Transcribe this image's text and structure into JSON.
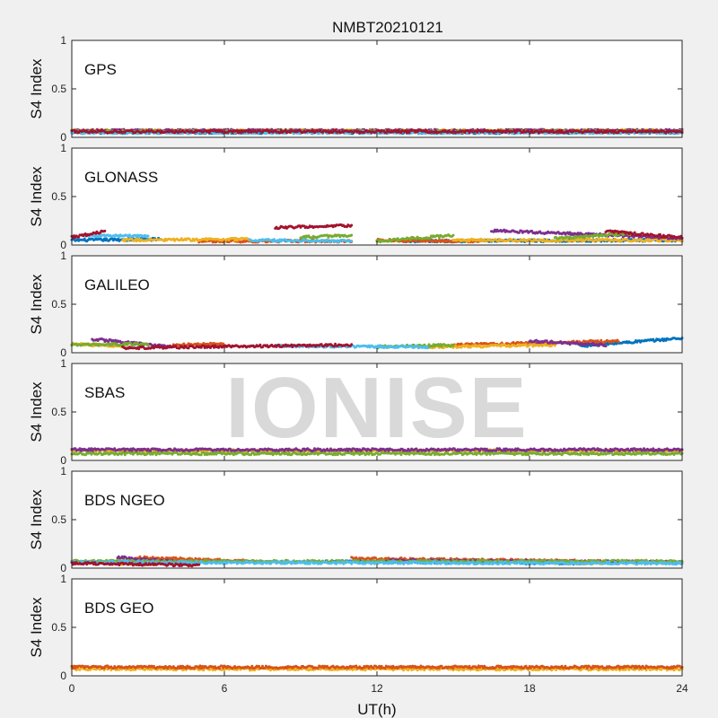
{
  "title": "NMBT20210121",
  "watermark": "IONISE",
  "colors": [
    "#0072BD",
    "#D95319",
    "#EDB120",
    "#7E2F8E",
    "#77AC30",
    "#4DBEEE",
    "#A2142F"
  ],
  "chart_data": [
    {
      "type": "scatter",
      "label": "GPS",
      "ylabel": "S4 Index",
      "xlim": [
        0,
        24
      ],
      "ylim": [
        0,
        1
      ],
      "yticks": [
        "0",
        "0.5",
        "1"
      ],
      "series": [
        {
          "color": "#0072BD",
          "segments": [
            {
              "x": [
                0,
                24
              ],
              "y": [
                0.05,
                0.05
              ]
            }
          ]
        },
        {
          "color": "#D95319",
          "segments": [
            {
              "x": [
                0,
                24
              ],
              "y": [
                0.06,
                0.06
              ]
            }
          ]
        },
        {
          "color": "#EDB120",
          "segments": [
            {
              "x": [
                0,
                24
              ],
              "y": [
                0.07,
                0.07
              ]
            }
          ]
        },
        {
          "color": "#7E2F8E",
          "segments": [
            {
              "x": [
                0,
                24
              ],
              "y": [
                0.07,
                0.07
              ]
            }
          ]
        },
        {
          "color": "#77AC30",
          "segments": [
            {
              "x": [
                0,
                24
              ],
              "y": [
                0.06,
                0.06
              ]
            }
          ]
        },
        {
          "color": "#4DBEEE",
          "segments": [
            {
              "x": [
                0,
                24
              ],
              "y": [
                0.05,
                0.05
              ]
            }
          ]
        },
        {
          "color": "#A2142F",
          "segments": [
            {
              "x": [
                0,
                24
              ],
              "y": [
                0.06,
                0.06
              ]
            }
          ]
        }
      ]
    },
    {
      "type": "scatter",
      "label": "GLONASS",
      "ylabel": "S4 Index",
      "xlim": [
        0,
        24
      ],
      "ylim": [
        0,
        1
      ],
      "yticks": [
        "0",
        "0.5",
        "1"
      ],
      "series": [
        {
          "color": "#0072BD",
          "segments": [
            {
              "x": [
                0,
                3.5
              ],
              "y": [
                0.05,
                0.06
              ]
            },
            {
              "x": [
                13,
                24
              ],
              "y": [
                0.04,
                0.05
              ]
            }
          ]
        },
        {
          "color": "#D95319",
          "segments": [
            {
              "x": [
                5,
                11
              ],
              "y": [
                0.04,
                0.04
              ]
            },
            {
              "x": [
                12,
                16
              ],
              "y": [
                0.05,
                0.04
              ]
            }
          ]
        },
        {
          "color": "#EDB120",
          "segments": [
            {
              "x": [
                2,
                7
              ],
              "y": [
                0.05,
                0.06
              ]
            },
            {
              "x": [
                15,
                24
              ],
              "y": [
                0.05,
                0.05
              ]
            }
          ]
        },
        {
          "color": "#7E2F8E",
          "segments": [
            {
              "x": [
                16.5,
                24
              ],
              "y": [
                0.15,
                0.07
              ]
            }
          ]
        },
        {
          "color": "#77AC30",
          "segments": [
            {
              "x": [
                9,
                11
              ],
              "y": [
                0.08,
                0.1
              ]
            },
            {
              "x": [
                12,
                15
              ],
              "y": [
                0.04,
                0.1
              ]
            },
            {
              "x": [
                19,
                22
              ],
              "y": [
                0.07,
                0.12
              ]
            }
          ]
        },
        {
          "color": "#4DBEEE",
          "segments": [
            {
              "x": [
                0.5,
                3
              ],
              "y": [
                0.1,
                0.09
              ]
            },
            {
              "x": [
                7,
                11
              ],
              "y": [
                0.05,
                0.04
              ]
            }
          ]
        },
        {
          "color": "#A2142F",
          "segments": [
            {
              "x": [
                0,
                1.3
              ],
              "y": [
                0.08,
                0.14
              ]
            },
            {
              "x": [
                8,
                11
              ],
              "y": [
                0.18,
                0.2
              ]
            },
            {
              "x": [
                21,
                24
              ],
              "y": [
                0.14,
                0.08
              ]
            }
          ]
        }
      ]
    },
    {
      "type": "scatter",
      "label": "GALILEO",
      "ylabel": "S4 Index",
      "xlim": [
        0,
        24
      ],
      "ylim": [
        0,
        1
      ],
      "yticks": [
        "0",
        "0.5",
        "1"
      ],
      "series": [
        {
          "color": "#0072BD",
          "segments": [
            {
              "x": [
                20,
                24
              ],
              "y": [
                0.07,
                0.15
              ]
            }
          ]
        },
        {
          "color": "#D95319",
          "segments": [
            {
              "x": [
                4,
                6
              ],
              "y": [
                0.08,
                0.09
              ]
            },
            {
              "x": [
                15,
                21.5
              ],
              "y": [
                0.08,
                0.12
              ]
            }
          ]
        },
        {
          "color": "#EDB120",
          "segments": [
            {
              "x": [
                0,
                2
              ],
              "y": [
                0.09,
                0.07
              ]
            },
            {
              "x": [
                14,
                19
              ],
              "y": [
                0.06,
                0.08
              ]
            }
          ]
        },
        {
          "color": "#7E2F8E",
          "segments": [
            {
              "x": [
                0.8,
                4
              ],
              "y": [
                0.14,
                0.06
              ]
            },
            {
              "x": [
                18,
                21
              ],
              "y": [
                0.12,
                0.08
              ]
            }
          ]
        },
        {
          "color": "#77AC30",
          "segments": [
            {
              "x": [
                0,
                3
              ],
              "y": [
                0.08,
                0.09
              ]
            },
            {
              "x": [
                12,
                15
              ],
              "y": [
                0.06,
                0.08
              ]
            }
          ]
        },
        {
          "color": "#4DBEEE",
          "segments": [
            {
              "x": [
                8,
                14
              ],
              "y": [
                0.07,
                0.06
              ]
            }
          ]
        },
        {
          "color": "#A2142F",
          "segments": [
            {
              "x": [
                2,
                11
              ],
              "y": [
                0.05,
                0.08
              ]
            }
          ]
        }
      ]
    },
    {
      "type": "scatter",
      "label": "SBAS",
      "ylabel": "S4 Index",
      "xlim": [
        0,
        24
      ],
      "ylim": [
        0,
        1
      ],
      "yticks": [
        "0",
        "0.5",
        "1"
      ],
      "series": [
        {
          "color": "#EDB120",
          "segments": [
            {
              "x": [
                0,
                24
              ],
              "y": [
                0.1,
                0.1
              ]
            }
          ]
        },
        {
          "color": "#77AC30",
          "segments": [
            {
              "x": [
                0,
                24
              ],
              "y": [
                0.07,
                0.07
              ]
            }
          ]
        },
        {
          "color": "#7E2F8E",
          "segments": [
            {
              "x": [
                0,
                24
              ],
              "y": [
                0.11,
                0.11
              ]
            }
          ]
        }
      ]
    },
    {
      "type": "scatter",
      "label": "BDS NGEO",
      "ylabel": "S4 Index",
      "xlim": [
        0,
        24
      ],
      "ylim": [
        0,
        1
      ],
      "yticks": [
        "0",
        "0.5",
        "1"
      ],
      "series": [
        {
          "color": "#0072BD",
          "segments": [
            {
              "x": [
                10,
                20
              ],
              "y": [
                0.07,
                0.05
              ]
            }
          ]
        },
        {
          "color": "#D95319",
          "segments": [
            {
              "x": [
                2.5,
                7
              ],
              "y": [
                0.11,
                0.07
              ]
            },
            {
              "x": [
                11,
                24
              ],
              "y": [
                0.1,
                0.06
              ]
            }
          ]
        },
        {
          "color": "#EDB120",
          "segments": [
            {
              "x": [
                0.5,
                3
              ],
              "y": [
                0.06,
                0.04
              ]
            },
            {
              "x": [
                19,
                24
              ],
              "y": [
                0.05,
                0.06
              ]
            }
          ]
        },
        {
          "color": "#7E2F8E",
          "segments": [
            {
              "x": [
                1.8,
                4.5
              ],
              "y": [
                0.11,
                0.06
              ]
            },
            {
              "x": [
                12.5,
                24
              ],
              "y": [
                0.08,
                0.06
              ]
            }
          ]
        },
        {
          "color": "#77AC30",
          "segments": [
            {
              "x": [
                0,
                24
              ],
              "y": [
                0.07,
                0.07
              ]
            }
          ]
        },
        {
          "color": "#4DBEEE",
          "segments": [
            {
              "x": [
                0,
                24
              ],
              "y": [
                0.06,
                0.05
              ]
            }
          ]
        },
        {
          "color": "#A2142F",
          "segments": [
            {
              "x": [
                0,
                5
              ],
              "y": [
                0.05,
                0.03
              ]
            }
          ]
        }
      ]
    },
    {
      "type": "scatter",
      "label": "BDS GEO",
      "ylabel": "S4 Index",
      "xlim": [
        0,
        24
      ],
      "ylim": [
        0,
        1
      ],
      "yticks": [
        "0",
        "0.5",
        "1"
      ],
      "xticks": [
        "0",
        "6",
        "12",
        "18",
        "24"
      ],
      "xlabel": "UT(h)",
      "series": [
        {
          "color": "#EDB120",
          "segments": [
            {
              "x": [
                0,
                24
              ],
              "y": [
                0.07,
                0.07
              ]
            }
          ]
        },
        {
          "color": "#D95319",
          "segments": [
            {
              "x": [
                0,
                24
              ],
              "y": [
                0.09,
                0.09
              ]
            }
          ]
        }
      ]
    }
  ]
}
